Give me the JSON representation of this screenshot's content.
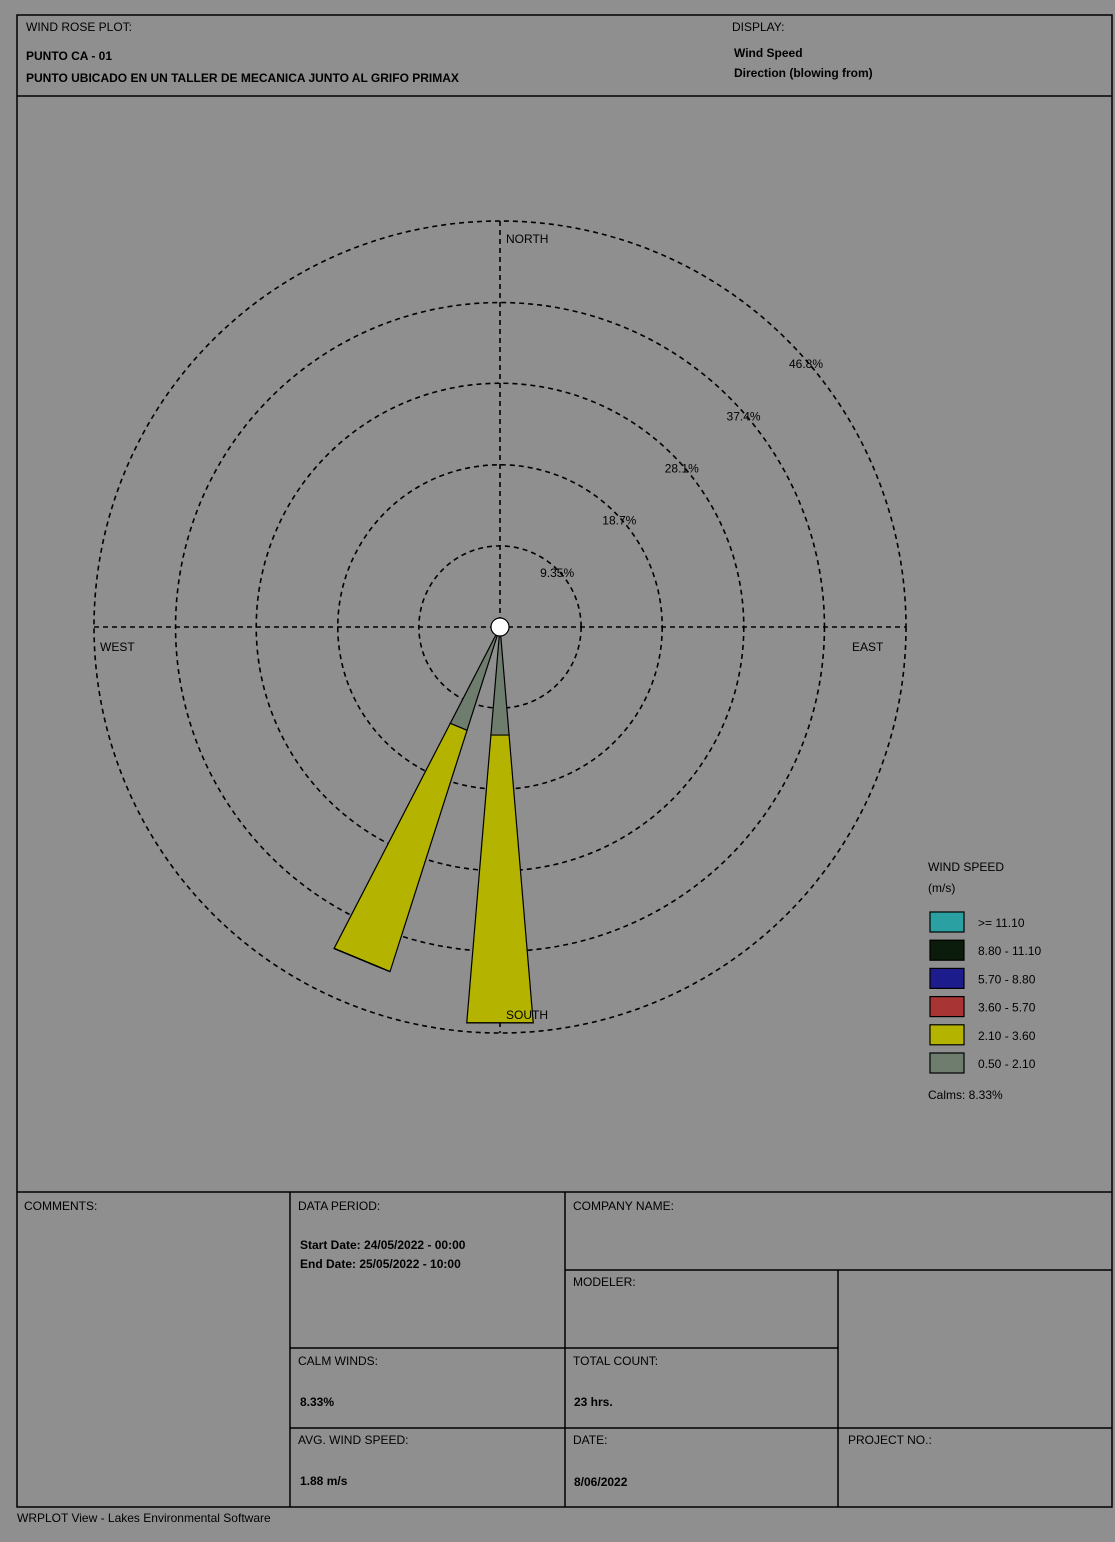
{
  "header": {
    "plot_label": "WIND ROSE PLOT:",
    "title": "PUNTO CA - 01",
    "subtitle": "PUNTO UBICADO EN UN TALLER DE  MECANICA JUNTO AL GRIFO PRIMAX",
    "display_label": "DISPLAY:",
    "display_lines": [
      "Wind Speed",
      "Direction (blowing from)"
    ]
  },
  "chart_data": {
    "type": "windrose",
    "compass": {
      "north": "NORTH",
      "south": "SOUTH",
      "east": "EAST",
      "west": "WEST"
    },
    "x": [
      180,
      202.5
    ],
    "rlim": [
      0,
      46.8
    ],
    "rticks": [
      {
        "value": 9.35,
        "label": "9.35%"
      },
      {
        "value": 18.7,
        "label": "18.7%"
      },
      {
        "value": 28.1,
        "label": "28.1%"
      },
      {
        "value": 37.4,
        "label": "37.4%"
      },
      {
        "value": 46.8,
        "label": "46.8%"
      }
    ],
    "legend_title": "WIND SPEED",
    "legend_unit": "(m/s)",
    "calms": "Calms: 8.33%",
    "series": [
      {
        "name": "0.50 - 2.10",
        "color": "#6f7d6f",
        "values": [
          12.5,
          12.5
        ]
      },
      {
        "name": "2.10 - 3.60",
        "color": "#b3b300",
        "values": [
          33.3,
          29.2
        ]
      },
      {
        "name": "3.60 - 5.70",
        "color": "#a83434",
        "values": [
          0,
          0
        ]
      },
      {
        "name": "5.70 - 8.80",
        "color": "#1c1c8c",
        "values": [
          0,
          0
        ]
      },
      {
        "name": "8.80 - 11.10",
        "color": "#0c1c0c",
        "values": [
          0,
          0
        ]
      },
      {
        "name": ">= 11.10",
        "color": "#2aa0a2",
        "values": [
          0,
          0
        ]
      }
    ]
  },
  "info_table": {
    "comments": "COMMENTS:",
    "data_period": "DATA PERIOD:",
    "start_date": "Start Date: 24/05/2022 - 00:00",
    "end_date": "End Date: 25/05/2022 - 10:00",
    "company_name": "COMPANY NAME:",
    "modeler": "MODELER:",
    "calm_winds": "CALM WINDS:",
    "calm_winds_value": "8.33%",
    "total_count": "TOTAL COUNT:",
    "total_count_value": "23 hrs.",
    "avg_wind_speed": "AVG. WIND SPEED:",
    "avg_wind_speed_value": "1.88 m/s",
    "date": "DATE:",
    "date_value": "8/06/2022",
    "project_no": "PROJECT NO.:"
  },
  "footer": "WRPLOT View - Lakes Environmental Software"
}
